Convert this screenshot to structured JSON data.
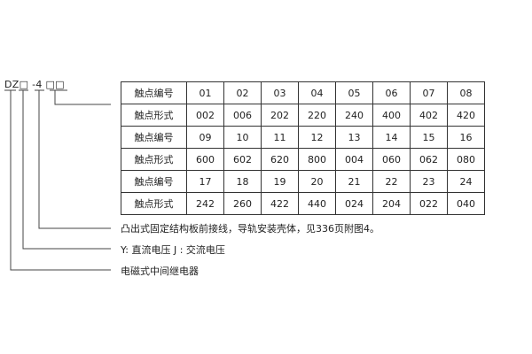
{
  "model_code": "DZ□ -4 □□",
  "contact_table": {
    "rows": [
      {
        "label": "触点编号",
        "values": [
          "01",
          "02",
          "03",
          "04",
          "05",
          "06",
          "07",
          "08"
        ]
      },
      {
        "label": "触点形式",
        "values": [
          "002",
          "006",
          "202",
          "220",
          "240",
          "400",
          "402",
          "420"
        ]
      },
      {
        "label": "触点编号",
        "values": [
          "09",
          "10",
          "11",
          "12",
          "13",
          "14",
          "15",
          "16"
        ]
      },
      {
        "label": "触点形式",
        "values": [
          "600",
          "602",
          "620",
          "800",
          "004",
          "060",
          "062",
          "080"
        ]
      },
      {
        "label": "触点编号",
        "values": [
          "17",
          "18",
          "19",
          "20",
          "21",
          "22",
          "23",
          "24"
        ]
      },
      {
        "label": "触点形式",
        "values": [
          "242",
          "260",
          "422",
          "440",
          "024",
          "204",
          "022",
          "040"
        ]
      }
    ]
  },
  "notes": [
    "凸出式固定结构板前接线，导轨安装壳体，见336页附图4。",
    "Y: 直流电压   J : 交流电压",
    "电磁式中间继电器"
  ]
}
